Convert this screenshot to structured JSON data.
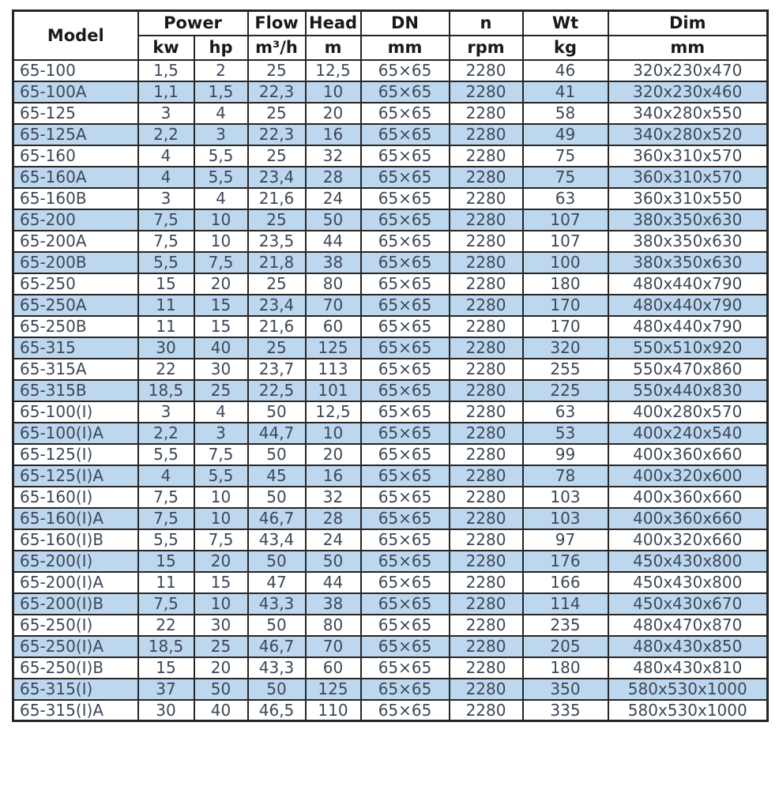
{
  "colors": {
    "alt_row": "#bdd7ee",
    "border": "#262626",
    "header_text": "#1a1a1a",
    "body_text": "#3d4856",
    "row_bg": "#ffffff",
    "page_bg": "#ffffff"
  },
  "table": {
    "header": {
      "model": "Model",
      "power": "Power",
      "flow": "Flow",
      "head": "Head",
      "dn": "DN",
      "n": "n",
      "wt": "Wt",
      "dim": "Dim"
    },
    "units": {
      "kw": "kw",
      "hp": "hp",
      "flow": "m³/h",
      "head": "m",
      "dn": "mm",
      "n": "rpm",
      "wt": "kg",
      "dim": "mm"
    },
    "rows": [
      [
        "65-100",
        "1,5",
        "2",
        "25",
        "12,5",
        "65×65",
        "2280",
        "46",
        "320x230x470"
      ],
      [
        "65-100A",
        "1,1",
        "1,5",
        "22,3",
        "10",
        "65×65",
        "2280",
        "41",
        "320x230x460"
      ],
      [
        "65-125",
        "3",
        "4",
        "25",
        "20",
        "65×65",
        "2280",
        "58",
        "340x280x550"
      ],
      [
        "65-125A",
        "2,2",
        "3",
        "22,3",
        "16",
        "65×65",
        "2280",
        "49",
        "340x280x520"
      ],
      [
        "65-160",
        "4",
        "5,5",
        "25",
        "32",
        "65×65",
        "2280",
        "75",
        "360x310x570"
      ],
      [
        "65-160A",
        "4",
        "5,5",
        "23,4",
        "28",
        "65×65",
        "2280",
        "75",
        "360x310x570"
      ],
      [
        "65-160B",
        "3",
        "4",
        "21,6",
        "24",
        "65×65",
        "2280",
        "63",
        "360x310x550"
      ],
      [
        "65-200",
        "7,5",
        "10",
        "25",
        "50",
        "65×65",
        "2280",
        "107",
        "380x350x630"
      ],
      [
        "65-200A",
        "7,5",
        "10",
        "23,5",
        "44",
        "65×65",
        "2280",
        "107",
        "380x350x630"
      ],
      [
        "65-200B",
        "5,5",
        "7,5",
        "21,8",
        "38",
        "65×65",
        "2280",
        "100",
        "380x350x630"
      ],
      [
        "65-250",
        "15",
        "20",
        "25",
        "80",
        "65×65",
        "2280",
        "180",
        "480x440x790"
      ],
      [
        "65-250A",
        "11",
        "15",
        "23,4",
        "70",
        "65×65",
        "2280",
        "170",
        "480x440x790"
      ],
      [
        "65-250B",
        "11",
        "15",
        "21,6",
        "60",
        "65×65",
        "2280",
        "170",
        "480x440x790"
      ],
      [
        "65-315",
        "30",
        "40",
        "25",
        "125",
        "65×65",
        "2280",
        "320",
        "550x510x920"
      ],
      [
        "65-315A",
        "22",
        "30",
        "23,7",
        "113",
        "65×65",
        "2280",
        "255",
        "550x470x860"
      ],
      [
        "65-315B",
        "18,5",
        "25",
        "22,5",
        "101",
        "65×65",
        "2280",
        "225",
        "550x440x830"
      ],
      [
        "65-100(I)",
        "3",
        "4",
        "50",
        "12,5",
        "65×65",
        "2280",
        "63",
        "400x280x570"
      ],
      [
        "65-100(I)A",
        "2,2",
        "3",
        "44,7",
        "10",
        "65×65",
        "2280",
        "53",
        "400x240x540"
      ],
      [
        "65-125(I)",
        "5,5",
        "7,5",
        "50",
        "20",
        "65×65",
        "2280",
        "99",
        "400x360x660"
      ],
      [
        "65-125(I)A",
        "4",
        "5,5",
        "45",
        "16",
        "65×65",
        "2280",
        "78",
        "400x320x600"
      ],
      [
        "65-160(I)",
        "7,5",
        "10",
        "50",
        "32",
        "65×65",
        "2280",
        "103",
        "400x360x660"
      ],
      [
        "65-160(I)A",
        "7,5",
        "10",
        "46,7",
        "28",
        "65×65",
        "2280",
        "103",
        "400x360x660"
      ],
      [
        "65-160(I)B",
        "5,5",
        "7,5",
        "43,4",
        "24",
        "65×65",
        "2280",
        "97",
        "400x320x660"
      ],
      [
        "65-200(I)",
        "15",
        "20",
        "50",
        "50",
        "65×65",
        "2280",
        "176",
        "450x430x800"
      ],
      [
        "65-200(I)A",
        "11",
        "15",
        "47",
        "44",
        "65×65",
        "2280",
        "166",
        "450x430x800"
      ],
      [
        "65-200(I)B",
        "7,5",
        "10",
        "43,3",
        "38",
        "65×65",
        "2280",
        "114",
        "450x430x670"
      ],
      [
        "65-250(I)",
        "22",
        "30",
        "50",
        "80",
        "65×65",
        "2280",
        "235",
        "480x470x870"
      ],
      [
        "65-250(I)A",
        "18,5",
        "25",
        "46,7",
        "70",
        "65×65",
        "2280",
        "205",
        "480x430x850"
      ],
      [
        "65-250(I)B",
        "15",
        "20",
        "43,3",
        "60",
        "65×65",
        "2280",
        "180",
        "480x430x810"
      ],
      [
        "65-315(I)",
        "37",
        "50",
        "50",
        "125",
        "65×65",
        "2280",
        "350",
        "580x530x1000"
      ],
      [
        "65-315(I)A",
        "30",
        "40",
        "46,5",
        "110",
        "65×65",
        "2280",
        "335",
        "580x530x1000"
      ]
    ]
  }
}
